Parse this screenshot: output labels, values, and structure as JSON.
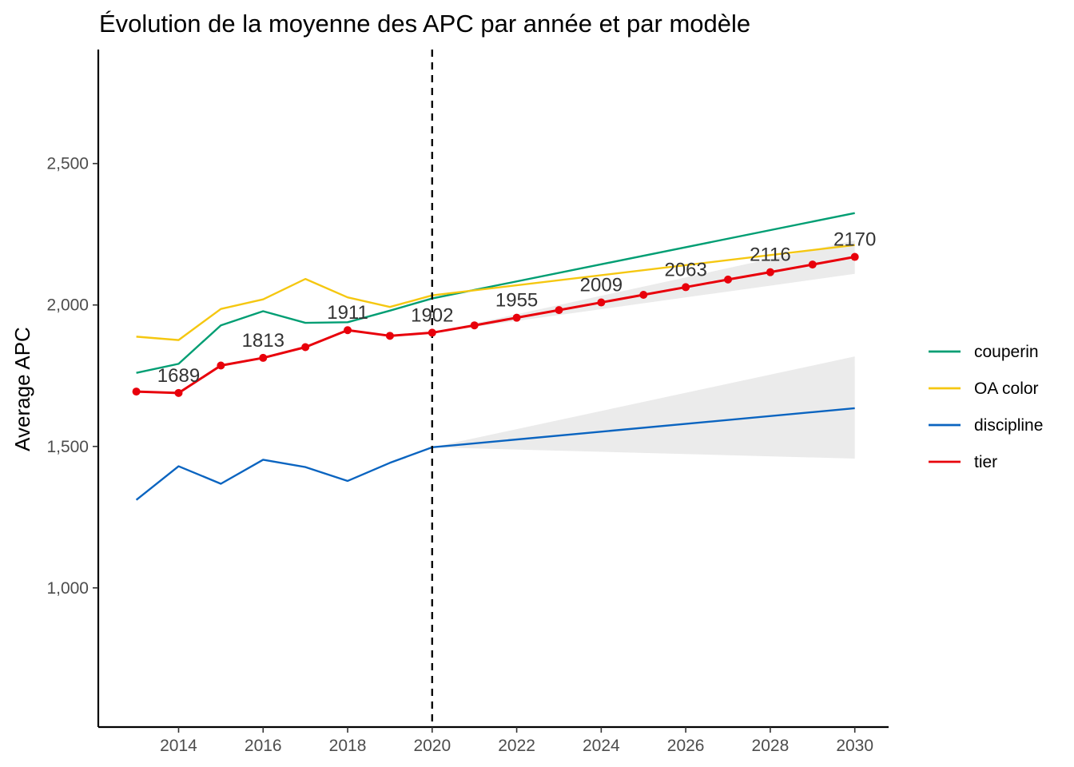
{
  "chart_data": {
    "type": "line",
    "title": "Évolution de la moyenne des APC par année et par modèle",
    "xlabel": "",
    "ylabel": "Average APC",
    "xlim": [
      2012.1,
      2030.8
    ],
    "ylim": [
      508,
      2903
    ],
    "x_ticks": [
      2014,
      2016,
      2018,
      2020,
      2022,
      2024,
      2026,
      2028,
      2030
    ],
    "y_ticks": [
      1000,
      1500,
      2000,
      2500
    ],
    "y_tick_labels": [
      "1,000",
      "1,500",
      "2,000",
      "2,500"
    ],
    "vline": {
      "x": 2020,
      "style": "dashed"
    },
    "grid": false,
    "legend": {
      "position": "right",
      "entries": [
        "couperin",
        "OA color",
        "discipline",
        "tier"
      ]
    },
    "series": [
      {
        "name": "couperin",
        "color": "#009E73",
        "x": [
          2013,
          2014,
          2015,
          2016,
          2017,
          2018,
          2019,
          2020,
          2030
        ],
        "y": [
          1760,
          1792,
          1928,
          1978,
          1937,
          1939,
          1980,
          2023,
          2325
        ]
      },
      {
        "name": "OA color",
        "color": "#F5C710",
        "x": [
          2013,
          2014,
          2015,
          2016,
          2017,
          2018,
          2019,
          2020,
          2030
        ],
        "y": [
          1888,
          1876,
          1986,
          2020,
          2092,
          2027,
          1993,
          2034,
          2212
        ]
      },
      {
        "name": "discipline",
        "color": "#0A64C0",
        "x": [
          2013,
          2014,
          2015,
          2016,
          2017,
          2018,
          2019,
          2020,
          2030
        ],
        "y": [
          1311,
          1430,
          1368,
          1453,
          1427,
          1378,
          1442,
          1497,
          1635
        ],
        "band": {
          "x": [
            2020,
            2030
          ],
          "lower": [
            1497,
            1457
          ],
          "upper": [
            1497,
            1818
          ]
        }
      },
      {
        "name": "tier",
        "color": "#E8000B",
        "markers": true,
        "x": [
          2013,
          2014,
          2015,
          2016,
          2017,
          2018,
          2019,
          2020,
          2021,
          2022,
          2023,
          2024,
          2025,
          2026,
          2027,
          2028,
          2029,
          2030
        ],
        "y": [
          1694,
          1689,
          1786,
          1813,
          1851,
          1911,
          1891,
          1902,
          1928,
          1955,
          1982,
          2009,
          2036,
          2063,
          2090,
          2116,
          2143,
          2170
        ],
        "band": {
          "x": [
            2020,
            2030
          ],
          "lower": [
            1902,
            2110
          ],
          "upper": [
            1902,
            2228
          ]
        }
      }
    ],
    "data_labels": [
      {
        "x": 2014,
        "y": 1689,
        "text": "1689"
      },
      {
        "x": 2016,
        "y": 1813,
        "text": "1813"
      },
      {
        "x": 2018,
        "y": 1911,
        "text": "1911"
      },
      {
        "x": 2020,
        "y": 1902,
        "text": "1902"
      },
      {
        "x": 2022,
        "y": 1955,
        "text": "1955"
      },
      {
        "x": 2024,
        "y": 2009,
        "text": "2009"
      },
      {
        "x": 2026,
        "y": 2063,
        "text": "2063"
      },
      {
        "x": 2028,
        "y": 2116,
        "text": "2116"
      },
      {
        "x": 2030,
        "y": 2170,
        "text": "2170"
      }
    ]
  }
}
